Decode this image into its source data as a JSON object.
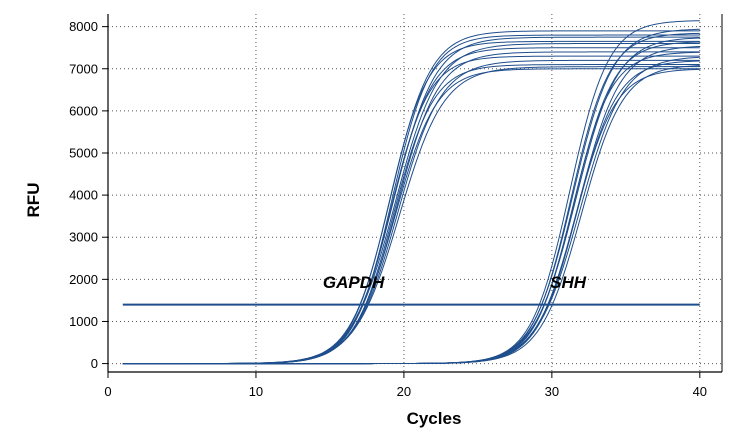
{
  "chart_data": {
    "type": "line",
    "xlabel": "Cycles",
    "ylabel": "RFU",
    "xlim": [
      0,
      41.5
    ],
    "ylim": [
      -200,
      8300
    ],
    "x_ticks": [
      0,
      10,
      20,
      30,
      40
    ],
    "y_ticks": [
      0,
      1000,
      2000,
      3000,
      4000,
      5000,
      6000,
      7000,
      8000
    ],
    "x_tick_labels": [
      "0",
      "10",
      "20",
      "30",
      "40"
    ],
    "y_tick_labels": [
      "0",
      "1000",
      "2000",
      "3000",
      "4000",
      "5000",
      "6000",
      "7000",
      "8000"
    ],
    "grid": "dotted",
    "line_color": "#1f4e8c",
    "threshold": {
      "value": 1400,
      "x_range": [
        1,
        40
      ]
    },
    "annotations": [
      {
        "text": "GAPDH",
        "x": 16.6,
        "y": 1800
      },
      {
        "text": "SHH",
        "x": 31.1,
        "y": 1800
      }
    ],
    "sigmoid_formula": "RFU = baseline + plateau / (1 + exp(-(cycle - midpoint) / slope))",
    "groups": [
      {
        "name": "GAPDH",
        "curves": [
          {
            "midpoint": 19.1,
            "slope": 1.35,
            "plateau": 7900,
            "baseline": 0
          },
          {
            "midpoint": 19.2,
            "slope": 1.3,
            "plateau": 7800,
            "baseline": 0
          },
          {
            "midpoint": 19.3,
            "slope": 1.4,
            "plateau": 7750,
            "baseline": 0
          },
          {
            "midpoint": 19.0,
            "slope": 1.3,
            "plateau": 7650,
            "baseline": 0
          },
          {
            "midpoint": 19.4,
            "slope": 1.45,
            "plateau": 7600,
            "baseline": 0
          },
          {
            "midpoint": 19.2,
            "slope": 1.35,
            "plateau": 7500,
            "baseline": 0
          },
          {
            "midpoint": 19.5,
            "slope": 1.4,
            "plateau": 7400,
            "baseline": 0
          },
          {
            "midpoint": 19.1,
            "slope": 1.3,
            "plateau": 7300,
            "baseline": 0
          },
          {
            "midpoint": 19.6,
            "slope": 1.45,
            "plateau": 7200,
            "baseline": 0
          },
          {
            "midpoint": 19.3,
            "slope": 1.35,
            "plateau": 7100,
            "baseline": 0
          },
          {
            "midpoint": 19.7,
            "slope": 1.5,
            "plateau": 7050,
            "baseline": 0
          },
          {
            "midpoint": 19.4,
            "slope": 1.4,
            "plateau": 7000,
            "baseline": 0
          }
        ]
      },
      {
        "name": "SHH",
        "curves": [
          {
            "midpoint": 31.2,
            "slope": 1.3,
            "plateau": 8150,
            "baseline": 0
          },
          {
            "midpoint": 31.4,
            "slope": 1.35,
            "plateau": 7950,
            "baseline": 0
          },
          {
            "midpoint": 31.3,
            "slope": 1.3,
            "plateau": 7850,
            "baseline": 0
          },
          {
            "midpoint": 31.6,
            "slope": 1.4,
            "plateau": 7750,
            "baseline": 0
          },
          {
            "midpoint": 31.5,
            "slope": 1.35,
            "plateau": 7650,
            "baseline": 0
          },
          {
            "midpoint": 31.8,
            "slope": 1.4,
            "plateau": 7550,
            "baseline": 0
          },
          {
            "midpoint": 31.4,
            "slope": 1.3,
            "plateau": 7400,
            "baseline": 0
          },
          {
            "midpoint": 31.9,
            "slope": 1.45,
            "plateau": 7300,
            "baseline": 0
          },
          {
            "midpoint": 31.7,
            "slope": 1.35,
            "plateau": 7200,
            "baseline": 0
          },
          {
            "midpoint": 32.0,
            "slope": 1.4,
            "plateau": 7100,
            "baseline": 0
          },
          {
            "midpoint": 31.6,
            "slope": 1.35,
            "plateau": 7000,
            "baseline": 0
          }
        ]
      }
    ]
  }
}
